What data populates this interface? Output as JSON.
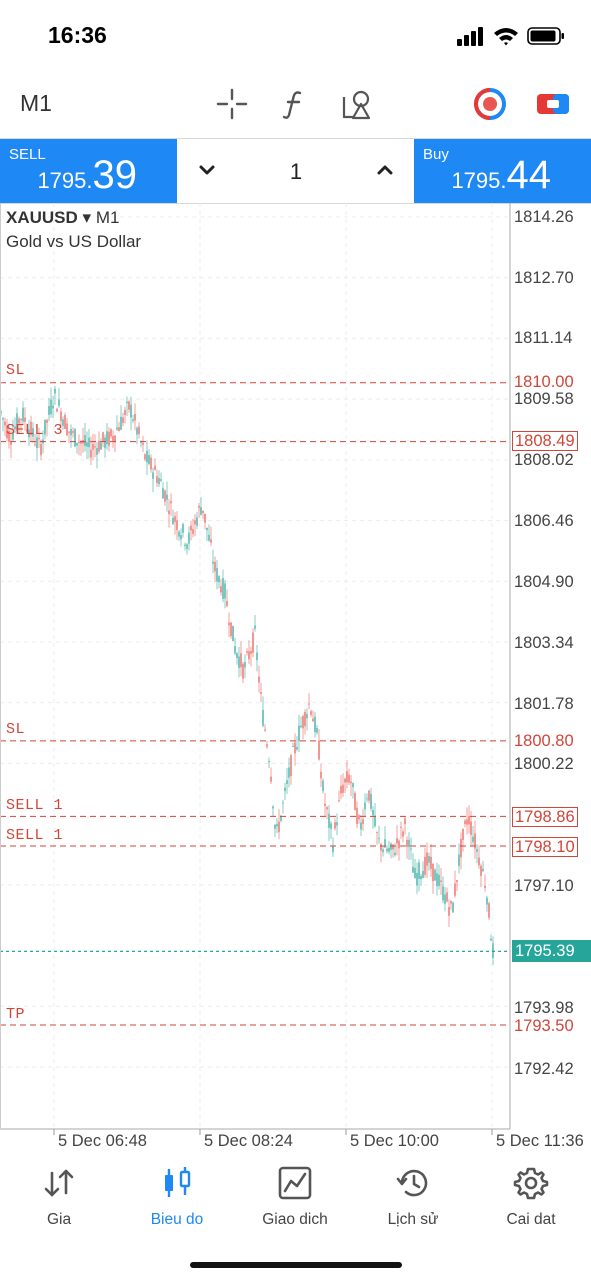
{
  "status": {
    "time": "16:36"
  },
  "toolbar": {
    "timeframe": "M1"
  },
  "trade": {
    "sell_label": "SELL",
    "sell_price_small": "1795.",
    "sell_price_big": "39",
    "buy_label": "Buy",
    "buy_price_small": "1795.",
    "buy_price_big": "44",
    "lot": "1"
  },
  "chart": {
    "symbol": "XAUUSD",
    "symbol_arrow": "▾",
    "timeframe": "M1",
    "description": "Gold vs US Dollar",
    "price_axis": [
      "1814.26",
      "1812.70",
      "1811.14",
      "1809.58",
      "1808.02",
      "1806.46",
      "1804.90",
      "1803.34",
      "1801.78",
      "1800.22",
      "1797.10",
      "1793.98",
      "1792.42"
    ],
    "levels": [
      {
        "label": "SL",
        "price": "1810.00",
        "value": 1810.0,
        "style": "plain"
      },
      {
        "label": "SELL 3",
        "price": "1808.49",
        "value": 1808.49,
        "style": "box"
      },
      {
        "label": "SL",
        "price": "1800.80",
        "value": 1800.8,
        "style": "plain"
      },
      {
        "label": "SELL 1",
        "price": "1798.86",
        "value": 1798.86,
        "style": "box"
      },
      {
        "label": "SELL 1",
        "price": "1798.10",
        "value": 1798.1,
        "style": "box"
      },
      {
        "label": "TP",
        "price": "1793.50",
        "value": 1793.5,
        "style": "plain"
      }
    ],
    "current_price": "1795.39",
    "time_axis": [
      "5 Dec 06:48",
      "5 Dec 08:24",
      "5 Dec 10:00",
      "5 Dec 11:36"
    ],
    "up_color": "#26a69a",
    "down_color": "#ef5350",
    "level_color": "#d0463a"
  },
  "nav": {
    "items": [
      {
        "label": "Gia",
        "icon": "quotes-arrows-icon",
        "active": false
      },
      {
        "label": "Bieu do",
        "icon": "chart-candles-icon",
        "active": true
      },
      {
        "label": "Giao dich",
        "icon": "trade-chart-icon",
        "active": false
      },
      {
        "label": "Lịch sử",
        "icon": "history-icon",
        "active": false
      },
      {
        "label": "Cai dat",
        "icon": "gear-icon",
        "active": false
      }
    ]
  }
}
